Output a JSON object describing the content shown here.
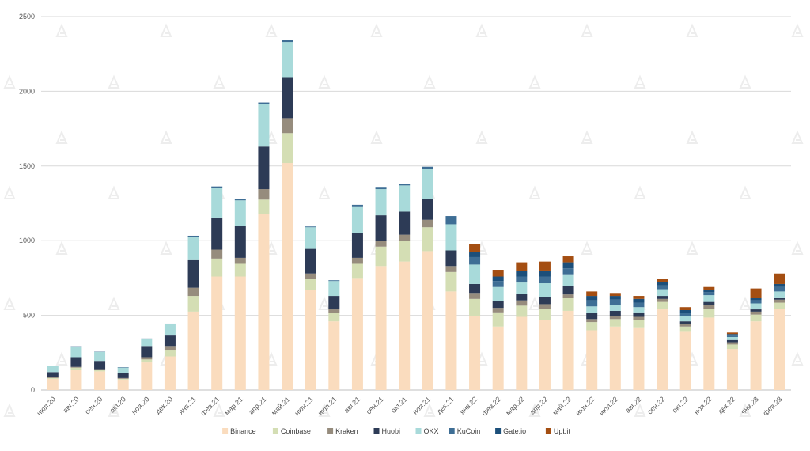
{
  "chart_data": {
    "type": "bar",
    "stacked": true,
    "title": "",
    "xlabel": "",
    "ylabel": "",
    "ylim": [
      0,
      2500
    ],
    "yticks": [
      0,
      500,
      1000,
      1500,
      2000,
      2500
    ],
    "grid": true,
    "legend_position": "bottom",
    "categories": [
      "июл.20",
      "авг.20",
      "сен.20",
      "окт.20",
      "ноя.20",
      "дек.20",
      "янв.21",
      "фев.21",
      "мар.21",
      "апр.21",
      "май.21",
      "июн.21",
      "июл.21",
      "авг.21",
      "сен.21",
      "окт.21",
      "ноя.21",
      "дек.21",
      "янв.22",
      "фев.22",
      "мар.22",
      "апр.22",
      "май.22",
      "июн.22",
      "июл.22",
      "авг.22",
      "сен.22",
      "окт.22",
      "ноя.22",
      "дек.22",
      "янв.23",
      "фев.23"
    ],
    "series": [
      {
        "name": "Binance",
        "color": "#FADCBE",
        "values": [
          75,
          135,
          125,
          70,
          185,
          225,
          525,
          760,
          760,
          1180,
          1520,
          670,
          460,
          750,
          830,
          860,
          930,
          660,
          495,
          425,
          490,
          470,
          530,
          400,
          425,
          420,
          540,
          395,
          485,
          275,
          460,
          545
        ]
      },
      {
        "name": "Coinbase",
        "color": "#D4DEB4",
        "values": [
          5,
          15,
          10,
          5,
          20,
          45,
          105,
          120,
          85,
          95,
          200,
          75,
          55,
          95,
          130,
          140,
          160,
          130,
          115,
          95,
          75,
          75,
          85,
          55,
          50,
          50,
          50,
          30,
          60,
          30,
          45,
          40
        ]
      },
      {
        "name": "Kraken",
        "color": "#968C7D",
        "values": [
          5,
          5,
          5,
          5,
          15,
          25,
          55,
          60,
          40,
          70,
          100,
          35,
          25,
          40,
          40,
          40,
          50,
          40,
          40,
          30,
          35,
          30,
          25,
          20,
          20,
          20,
          20,
          20,
          25,
          15,
          20,
          20
        ]
      },
      {
        "name": "Huobi",
        "color": "#2D3B56",
        "values": [
          35,
          65,
          55,
          35,
          75,
          70,
          190,
          215,
          215,
          285,
          275,
          165,
          90,
          165,
          170,
          155,
          140,
          105,
          60,
          45,
          45,
          50,
          55,
          40,
          35,
          30,
          20,
          15,
          20,
          15,
          15,
          15
        ]
      },
      {
        "name": "OKX",
        "color": "#A8DADA",
        "values": [
          40,
          70,
          60,
          35,
          45,
          75,
          150,
          200,
          170,
          285,
          235,
          145,
          100,
          180,
          175,
          175,
          200,
          175,
          130,
          95,
          75,
          90,
          80,
          45,
          40,
          35,
          45,
          35,
          45,
          20,
          40,
          40
        ]
      },
      {
        "name": "KuCoin",
        "color": "#3E6E95",
        "values": [
          0,
          3,
          2,
          3,
          5,
          5,
          8,
          8,
          8,
          10,
          12,
          5,
          5,
          10,
          15,
          10,
          15,
          55,
          50,
          40,
          40,
          45,
          40,
          40,
          35,
          30,
          25,
          20,
          20,
          10,
          20,
          30
        ]
      },
      {
        "name": "Gate.io",
        "color": "#1C4F7A",
        "values": [
          0,
          0,
          0,
          0,
          0,
          0,
          0,
          0,
          0,
          0,
          0,
          0,
          0,
          0,
          0,
          0,
          0,
          0,
          35,
          30,
          35,
          40,
          40,
          30,
          25,
          25,
          25,
          20,
          15,
          10,
          15,
          20
        ]
      },
      {
        "name": "Upbit",
        "color": "#A44E12",
        "values": [
          0,
          0,
          0,
          0,
          0,
          0,
          0,
          0,
          0,
          0,
          0,
          0,
          0,
          0,
          0,
          0,
          0,
          0,
          50,
          45,
          60,
          60,
          40,
          30,
          20,
          20,
          20,
          20,
          20,
          10,
          65,
          70
        ]
      }
    ]
  }
}
